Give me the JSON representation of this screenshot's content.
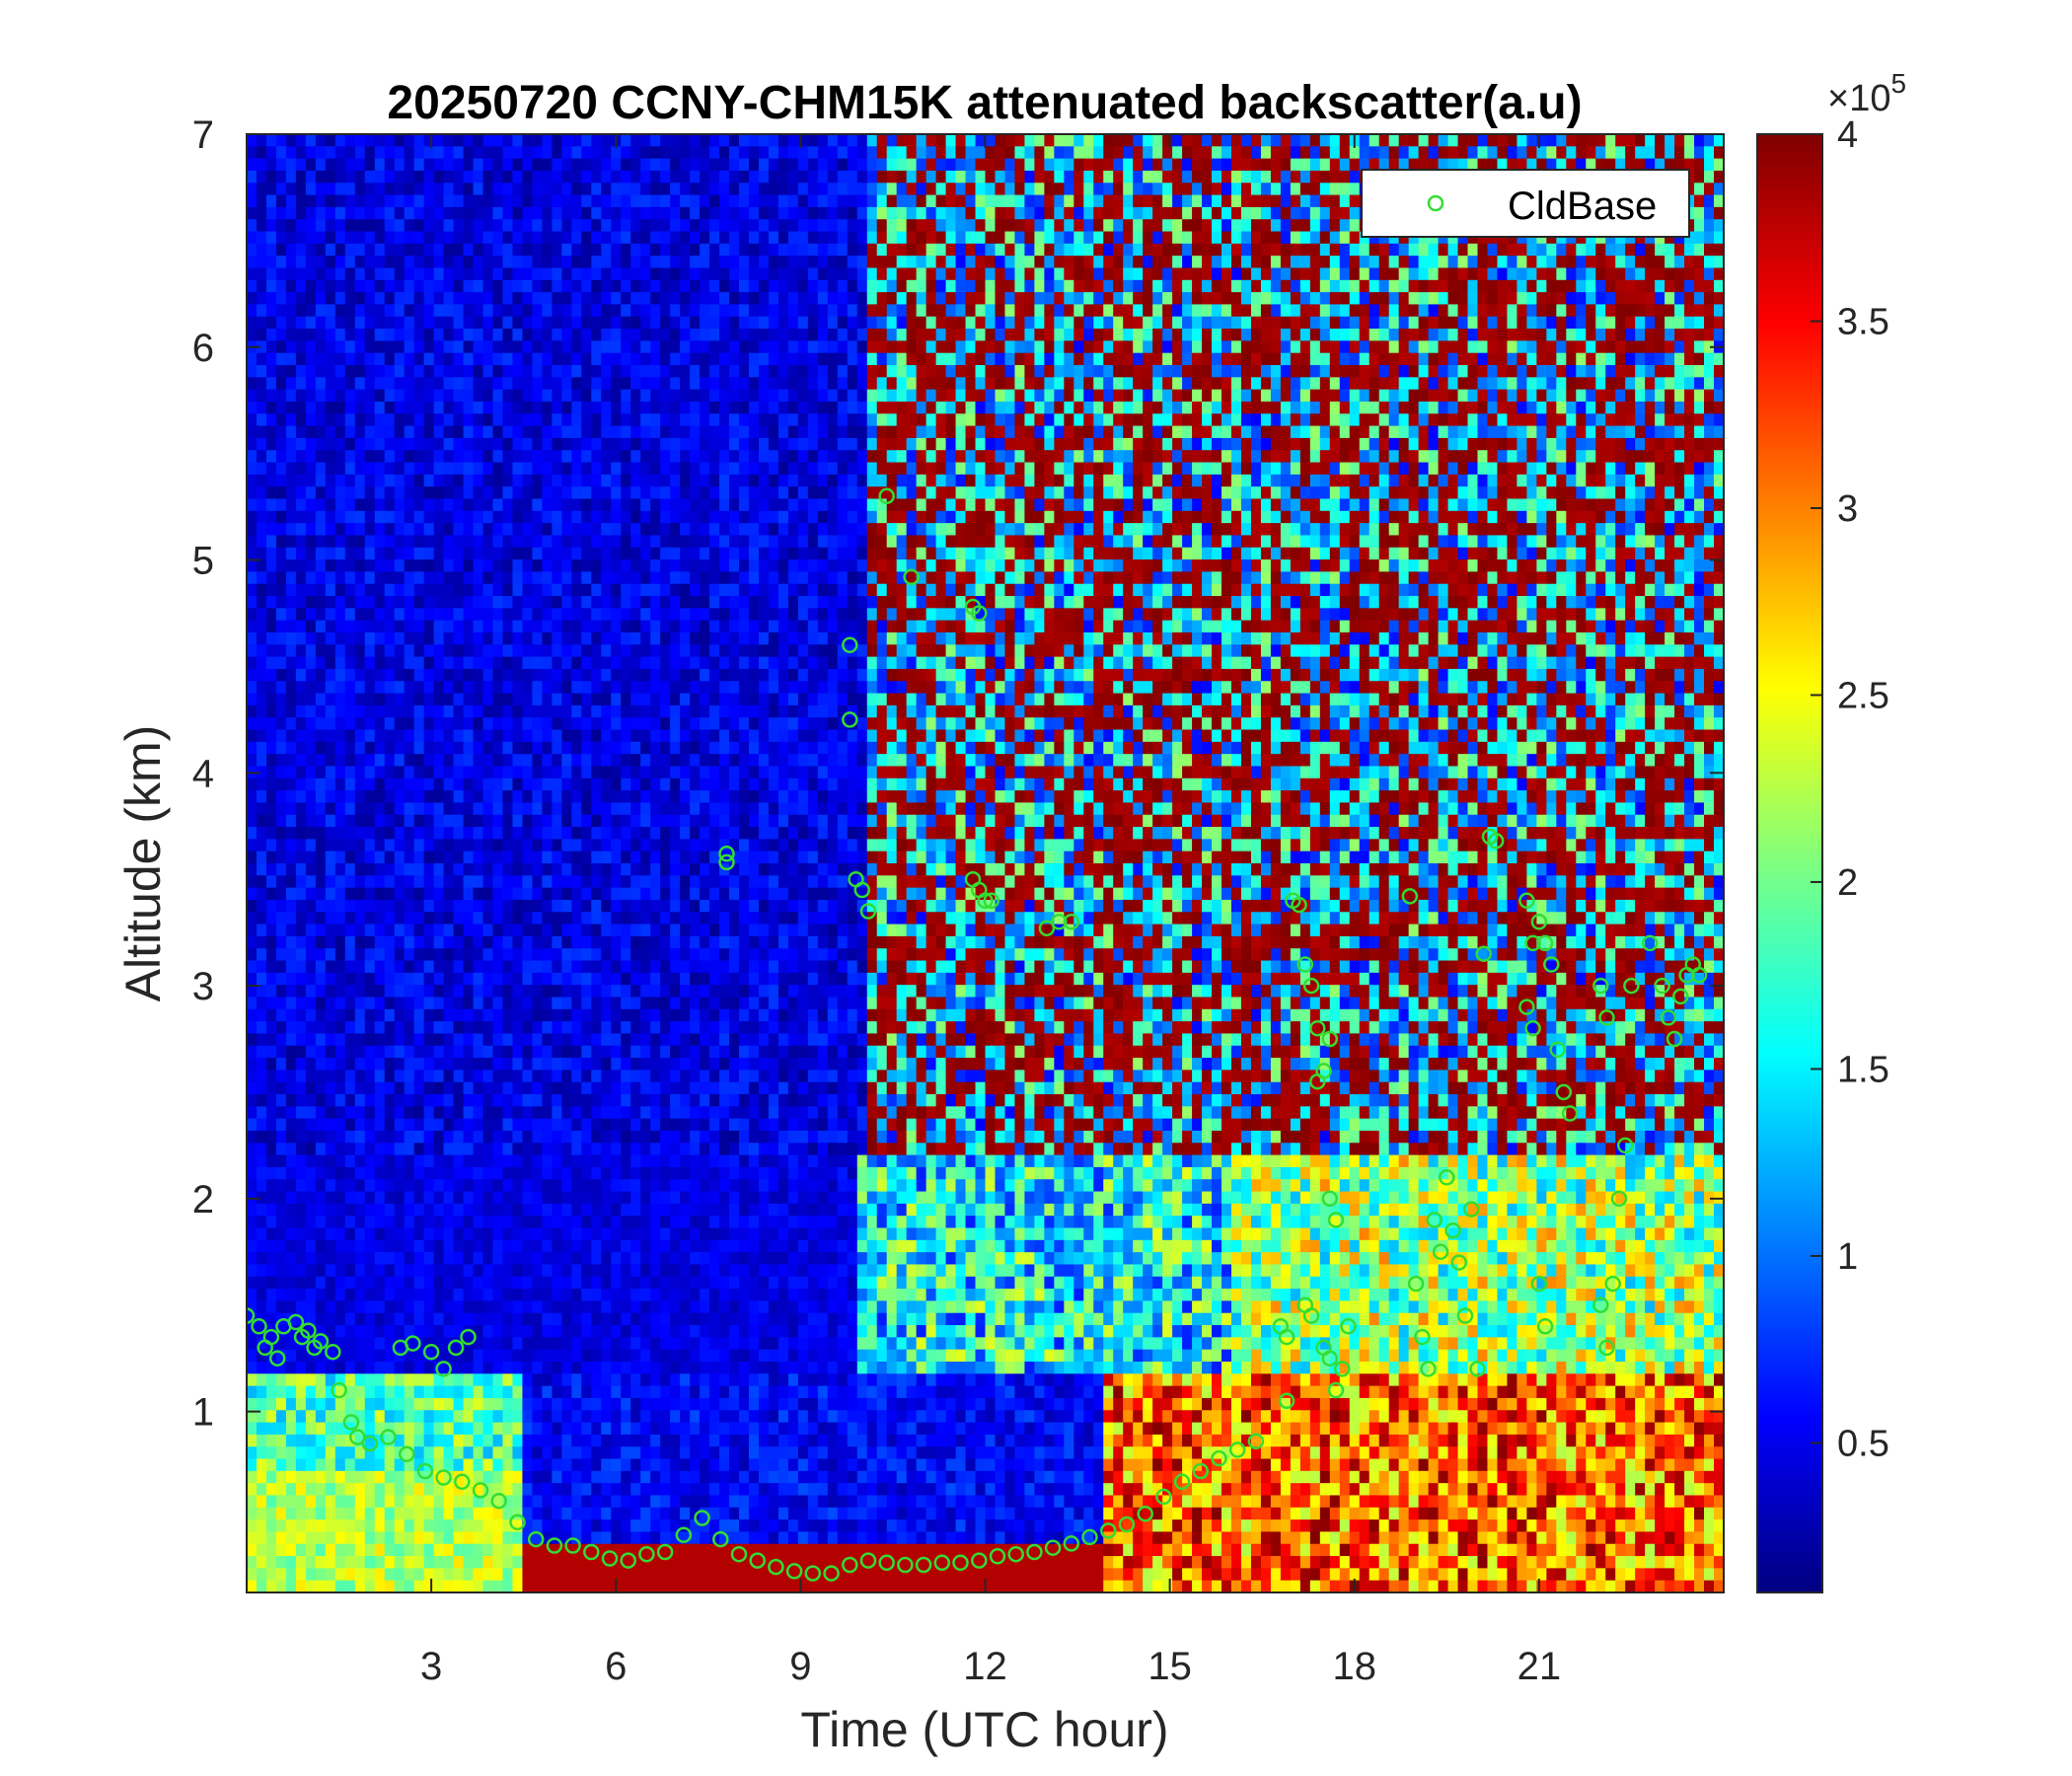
{
  "chart_data": {
    "type": "heatmap",
    "title": "20250720 CCNY-CHM15K attenuated backscatter(a.u)",
    "xlabel": "Time (UTC hour)",
    "ylabel": "Altitude (km)",
    "xlim": [
      0,
      24
    ],
    "ylim": [
      0.15,
      7
    ],
    "xticks": [
      3,
      6,
      9,
      12,
      15,
      18,
      21
    ],
    "yticks": [
      1,
      2,
      3,
      4,
      5,
      6,
      7
    ],
    "colormap": "jet",
    "colorbar": {
      "range": [
        0.1,
        4
      ],
      "ticks": [
        0.5,
        1,
        1.5,
        2,
        2.5,
        3,
        3.5,
        4
      ],
      "tick_labels": [
        "0.5",
        "1",
        "1.5",
        "2",
        "2.5",
        "3",
        "3.5",
        "4"
      ],
      "exponent_label": "×10",
      "exponent_power": "5"
    },
    "legend": {
      "position": "top-right",
      "entries": [
        {
          "name": "CldBase",
          "marker": "circle",
          "color": "#33dd33"
        }
      ]
    },
    "series": [
      {
        "name": "CldBase",
        "type": "scatter",
        "color": "#33dd33",
        "points": [
          [
            0.0,
            1.45
          ],
          [
            0.2,
            1.4
          ],
          [
            0.4,
            1.35
          ],
          [
            0.6,
            1.4
          ],
          [
            0.8,
            1.42
          ],
          [
            1.0,
            1.38
          ],
          [
            1.2,
            1.33
          ],
          [
            1.4,
            1.28
          ],
          [
            1.5,
            1.1
          ],
          [
            1.7,
            0.95
          ],
          [
            1.8,
            0.88
          ],
          [
            2.0,
            0.85
          ],
          [
            2.3,
            0.88
          ],
          [
            2.6,
            0.8
          ],
          [
            2.9,
            0.72
          ],
          [
            3.2,
            0.69
          ],
          [
            3.5,
            0.67
          ],
          [
            3.8,
            0.63
          ],
          [
            4.1,
            0.58
          ],
          [
            4.4,
            0.48
          ],
          [
            4.7,
            0.4
          ],
          [
            5.0,
            0.37
          ],
          [
            5.3,
            0.37
          ],
          [
            5.6,
            0.34
          ],
          [
            5.9,
            0.31
          ],
          [
            6.2,
            0.3
          ],
          [
            6.5,
            0.33
          ],
          [
            6.8,
            0.34
          ],
          [
            7.1,
            0.42
          ],
          [
            7.4,
            0.5
          ],
          [
            7.7,
            0.4
          ],
          [
            8.0,
            0.33
          ],
          [
            8.3,
            0.3
          ],
          [
            8.6,
            0.27
          ],
          [
            8.9,
            0.25
          ],
          [
            9.2,
            0.24
          ],
          [
            9.5,
            0.24
          ],
          [
            9.8,
            0.28
          ],
          [
            10.1,
            0.3
          ],
          [
            10.4,
            0.29
          ],
          [
            10.7,
            0.28
          ],
          [
            11.0,
            0.28
          ],
          [
            11.3,
            0.29
          ],
          [
            11.6,
            0.29
          ],
          [
            11.9,
            0.3
          ],
          [
            12.2,
            0.32
          ],
          [
            12.5,
            0.33
          ],
          [
            12.8,
            0.34
          ],
          [
            13.1,
            0.36
          ],
          [
            13.4,
            0.38
          ],
          [
            13.7,
            0.41
          ],
          [
            14.0,
            0.44
          ],
          [
            14.3,
            0.47
          ],
          [
            14.6,
            0.52
          ],
          [
            14.9,
            0.6
          ],
          [
            15.2,
            0.67
          ],
          [
            15.5,
            0.72
          ],
          [
            15.8,
            0.78
          ],
          [
            16.1,
            0.82
          ],
          [
            16.4,
            0.86
          ],
          [
            0.3,
            1.3
          ],
          [
            0.5,
            1.25
          ],
          [
            0.9,
            1.35
          ],
          [
            1.1,
            1.3
          ],
          [
            3.0,
            1.28
          ],
          [
            3.2,
            1.2
          ],
          [
            3.4,
            1.3
          ],
          [
            3.6,
            1.35
          ],
          [
            2.5,
            1.3
          ],
          [
            2.7,
            1.32
          ],
          [
            7.8,
            3.62
          ],
          [
            7.8,
            3.58
          ],
          [
            9.8,
            4.6
          ],
          [
            9.8,
            4.25
          ],
          [
            9.9,
            3.5
          ],
          [
            10.0,
            3.45
          ],
          [
            10.1,
            3.35
          ],
          [
            10.4,
            5.3
          ],
          [
            10.8,
            4.92
          ],
          [
            11.8,
            4.78
          ],
          [
            11.9,
            4.75
          ],
          [
            11.8,
            3.5
          ],
          [
            11.9,
            3.45
          ],
          [
            12.0,
            3.4
          ],
          [
            12.1,
            3.4
          ],
          [
            13.0,
            3.27
          ],
          [
            13.2,
            3.3
          ],
          [
            13.4,
            3.3
          ],
          [
            16.9,
            1.05
          ],
          [
            16.8,
            1.4
          ],
          [
            16.9,
            1.35
          ],
          [
            17.0,
            3.4
          ],
          [
            17.1,
            3.38
          ],
          [
            17.2,
            3.1
          ],
          [
            17.3,
            3.0
          ],
          [
            17.4,
            2.8
          ],
          [
            17.5,
            2.6
          ],
          [
            17.6,
            2.75
          ],
          [
            17.4,
            2.55
          ],
          [
            17.2,
            1.5
          ],
          [
            17.3,
            1.45
          ],
          [
            17.5,
            1.3
          ],
          [
            17.6,
            1.25
          ],
          [
            17.7,
            1.1
          ],
          [
            17.8,
            1.2
          ],
          [
            17.9,
            1.4
          ],
          [
            17.6,
            2.0
          ],
          [
            17.7,
            1.9
          ],
          [
            18.9,
            3.42
          ],
          [
            19.0,
            1.6
          ],
          [
            19.1,
            1.35
          ],
          [
            19.2,
            1.2
          ],
          [
            19.5,
            2.1
          ],
          [
            19.6,
            1.85
          ],
          [
            19.7,
            1.7
          ],
          [
            19.8,
            1.45
          ],
          [
            19.9,
            1.95
          ],
          [
            20.0,
            1.2
          ],
          [
            20.1,
            3.15
          ],
          [
            20.2,
            3.7
          ],
          [
            20.3,
            3.68
          ],
          [
            19.4,
            1.75
          ],
          [
            19.3,
            1.9
          ],
          [
            20.8,
            3.4
          ],
          [
            20.9,
            3.2
          ],
          [
            21.0,
            3.3
          ],
          [
            21.1,
            3.2
          ],
          [
            21.2,
            3.1
          ],
          [
            21.3,
            2.7
          ],
          [
            21.4,
            2.5
          ],
          [
            21.5,
            2.4
          ],
          [
            21.0,
            1.6
          ],
          [
            21.1,
            1.4
          ],
          [
            20.9,
            2.8
          ],
          [
            20.8,
            2.9
          ],
          [
            22.0,
            1.5
          ],
          [
            22.1,
            1.3
          ],
          [
            22.2,
            1.6
          ],
          [
            22.3,
            2.0
          ],
          [
            22.4,
            2.25
          ],
          [
            22.0,
            3.0
          ],
          [
            22.1,
            2.85
          ],
          [
            22.5,
            3.0
          ],
          [
            22.8,
            3.2
          ],
          [
            23.0,
            3.0
          ],
          [
            23.1,
            2.85
          ],
          [
            23.2,
            2.75
          ],
          [
            23.3,
            2.95
          ],
          [
            23.4,
            3.05
          ],
          [
            23.5,
            3.1
          ],
          [
            23.6,
            3.05
          ]
        ]
      }
    ]
  }
}
